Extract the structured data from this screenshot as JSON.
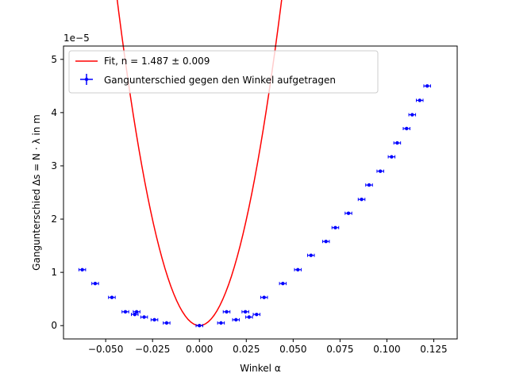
{
  "chart_data": {
    "type": "scatter",
    "xlabel": "Winkel α",
    "ylabel": "Gangunterschied Δs = N · λ in m",
    "offset_label": "1e−5",
    "xlim": [
      -0.0725,
      0.1375
    ],
    "ylim": [
      -0.25,
      5.25
    ],
    "x_ticks": [
      -0.05,
      -0.025,
      0.0,
      0.025,
      0.05,
      0.075,
      0.1,
      0.125
    ],
    "x_tick_labels": [
      "−0.050",
      "−0.025",
      "0.000",
      "0.025",
      "0.050",
      "0.075",
      "0.100",
      "0.125"
    ],
    "y_ticks": [
      0,
      1,
      2,
      3,
      4,
      5
    ],
    "y_tick_labels": [
      "0",
      "1",
      "2",
      "3",
      "4",
      "5"
    ],
    "grid": false,
    "legend_position": "top-left",
    "series": [
      {
        "name": "Fit, n = 1.487 ± 0.009",
        "kind": "line",
        "color": "#ff0000",
        "x_range": [
          -0.06,
          0.125
        ],
        "quadratic_coeff": 3180,
        "units_scale": "1e-5"
      },
      {
        "name": "Gangunterschied gegen den Winkel aufgetragen",
        "kind": "errorbar",
        "color": "#0000ff",
        "x_error": 0.0018,
        "points": [
          [
            -0.0625,
            1.05
          ],
          [
            -0.0556,
            0.79
          ],
          [
            -0.0467,
            0.53
          ],
          [
            -0.0395,
            0.26
          ],
          [
            -0.0345,
            0.21
          ],
          [
            -0.0335,
            0.26
          ],
          [
            -0.0295,
            0.16
          ],
          [
            -0.024,
            0.11
          ],
          [
            -0.0175,
            0.05
          ],
          [
            0.0,
            0.0
          ],
          [
            0.0115,
            0.05
          ],
          [
            0.0145,
            0.26
          ],
          [
            0.0195,
            0.11
          ],
          [
            0.0245,
            0.26
          ],
          [
            0.0265,
            0.16
          ],
          [
            0.0305,
            0.21
          ],
          [
            0.0345,
            0.53
          ],
          [
            0.0445,
            0.79
          ],
          [
            0.0525,
            1.05
          ],
          [
            0.0595,
            1.32
          ],
          [
            0.0675,
            1.58
          ],
          [
            0.0725,
            1.84
          ],
          [
            0.0795,
            2.11
          ],
          [
            0.0865,
            2.37
          ],
          [
            0.0905,
            2.64
          ],
          [
            0.0965,
            2.9
          ],
          [
            0.1025,
            3.17
          ],
          [
            0.1055,
            3.43
          ],
          [
            0.1105,
            3.7
          ],
          [
            0.1135,
            3.96
          ],
          [
            0.1175,
            4.23
          ],
          [
            0.1215,
            4.5
          ]
        ]
      }
    ]
  }
}
